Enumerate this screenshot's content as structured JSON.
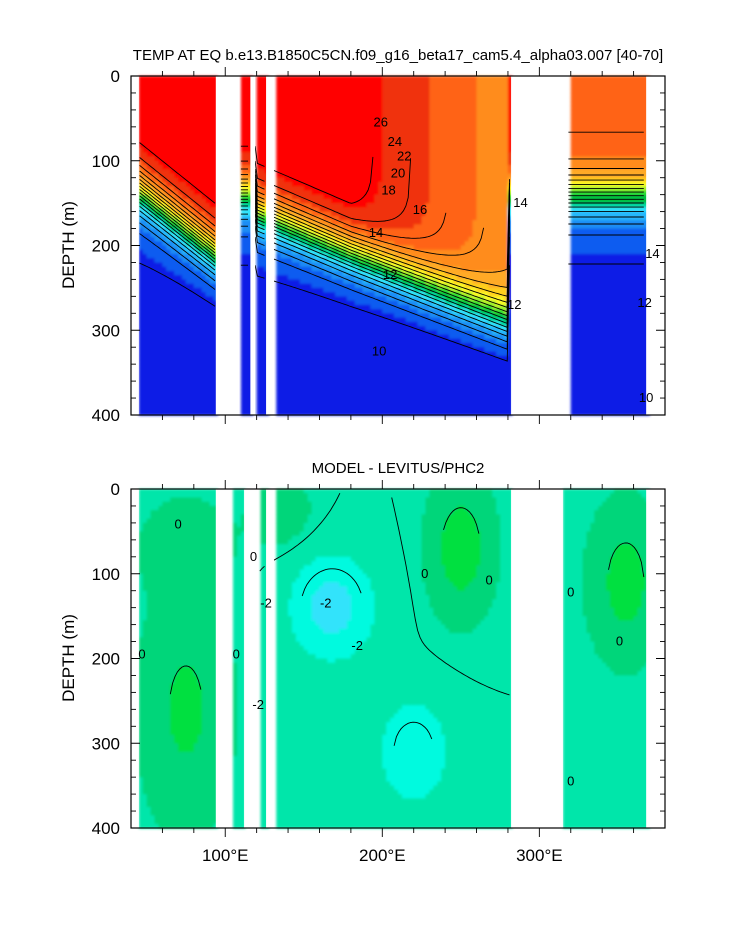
{
  "chart_data": [
    {
      "type": "heatmap",
      "title": "TEMP AT EQ b.e13.B1850C5CN.f09_g16_beta17_cam5.4_alpha03.007 [40-70]",
      "ylabel": "DEPTH (m)",
      "xlabel": "",
      "xlim": [
        40,
        380
      ],
      "ylim": [
        400,
        0
      ],
      "yticks": [
        "0",
        "100",
        "200",
        "300",
        "400"
      ],
      "xticks": [
        {
          "value": 100,
          "label": "100°E"
        },
        {
          "value": 200,
          "label": "200°E"
        },
        {
          "value": 300,
          "label": "300°E"
        }
      ],
      "contour_labels": [
        {
          "text": "26",
          "lon": 199,
          "depth": 55
        },
        {
          "text": "24",
          "lon": 208,
          "depth": 78
        },
        {
          "text": "22",
          "lon": 214,
          "depth": 95
        },
        {
          "text": "20",
          "lon": 210,
          "depth": 115
        },
        {
          "text": "18",
          "lon": 204,
          "depth": 135
        },
        {
          "text": "16",
          "lon": 224,
          "depth": 158
        },
        {
          "text": "14",
          "lon": 196,
          "depth": 185
        },
        {
          "text": "14",
          "lon": 288,
          "depth": 150
        },
        {
          "text": "14",
          "lon": 372,
          "depth": 210
        },
        {
          "text": "12",
          "lon": 205,
          "depth": 235
        },
        {
          "text": "12",
          "lon": 284,
          "depth": 270
        },
        {
          "text": "12",
          "lon": 367,
          "depth": 268
        },
        {
          "text": "10",
          "lon": 198,
          "depth": 325
        },
        {
          "text": "10",
          "lon": 368,
          "depth": 380
        }
      ],
      "colors": [
        "#0a1ee6",
        "#0f5cf0",
        "#1a8df5",
        "#28b6fa",
        "#33e3fb",
        "#00d6a0",
        "#00c040",
        "#33e033",
        "#aaf02a",
        "#fafa28",
        "#ffd01e",
        "#ffaa28",
        "#ff8c1e",
        "#ff6414",
        "#f0300a",
        "#ff0000"
      ]
    },
    {
      "type": "heatmap",
      "title": "MODEL - LEVITUS/PHC2",
      "ylabel": "DEPTH (m)",
      "xlabel": "",
      "xlim": [
        40,
        380
      ],
      "ylim": [
        400,
        0
      ],
      "yticks": [
        "0",
        "100",
        "200",
        "300",
        "400"
      ],
      "xticks": [
        {
          "value": 100,
          "label": "100°E"
        },
        {
          "value": 200,
          "label": "200°E"
        },
        {
          "value": 300,
          "label": "300°E"
        }
      ],
      "contour_labels": [
        {
          "text": "0",
          "lon": 70,
          "depth": 42
        },
        {
          "text": "0",
          "lon": 118,
          "depth": 80
        },
        {
          "text": "-2",
          "lon": 126,
          "depth": 135
        },
        {
          "text": "-2",
          "lon": 164,
          "depth": 135
        },
        {
          "text": "-2",
          "lon": 184,
          "depth": 185
        },
        {
          "text": "0",
          "lon": 227,
          "depth": 100
        },
        {
          "text": "0",
          "lon": 268,
          "depth": 108
        },
        {
          "text": "0",
          "lon": 47,
          "depth": 195
        },
        {
          "text": "0",
          "lon": 107,
          "depth": 195
        },
        {
          "text": "-2",
          "lon": 121,
          "depth": 255
        },
        {
          "text": "0",
          "lon": 320,
          "depth": 122
        },
        {
          "text": "0",
          "lon": 351,
          "depth": 180
        },
        {
          "text": "0",
          "lon": 320,
          "depth": 345
        }
      ],
      "colors": [
        "#33e3fb",
        "#00fadf",
        "#00e6aa",
        "#00d67a",
        "#00e040",
        "#10f010"
      ]
    }
  ]
}
